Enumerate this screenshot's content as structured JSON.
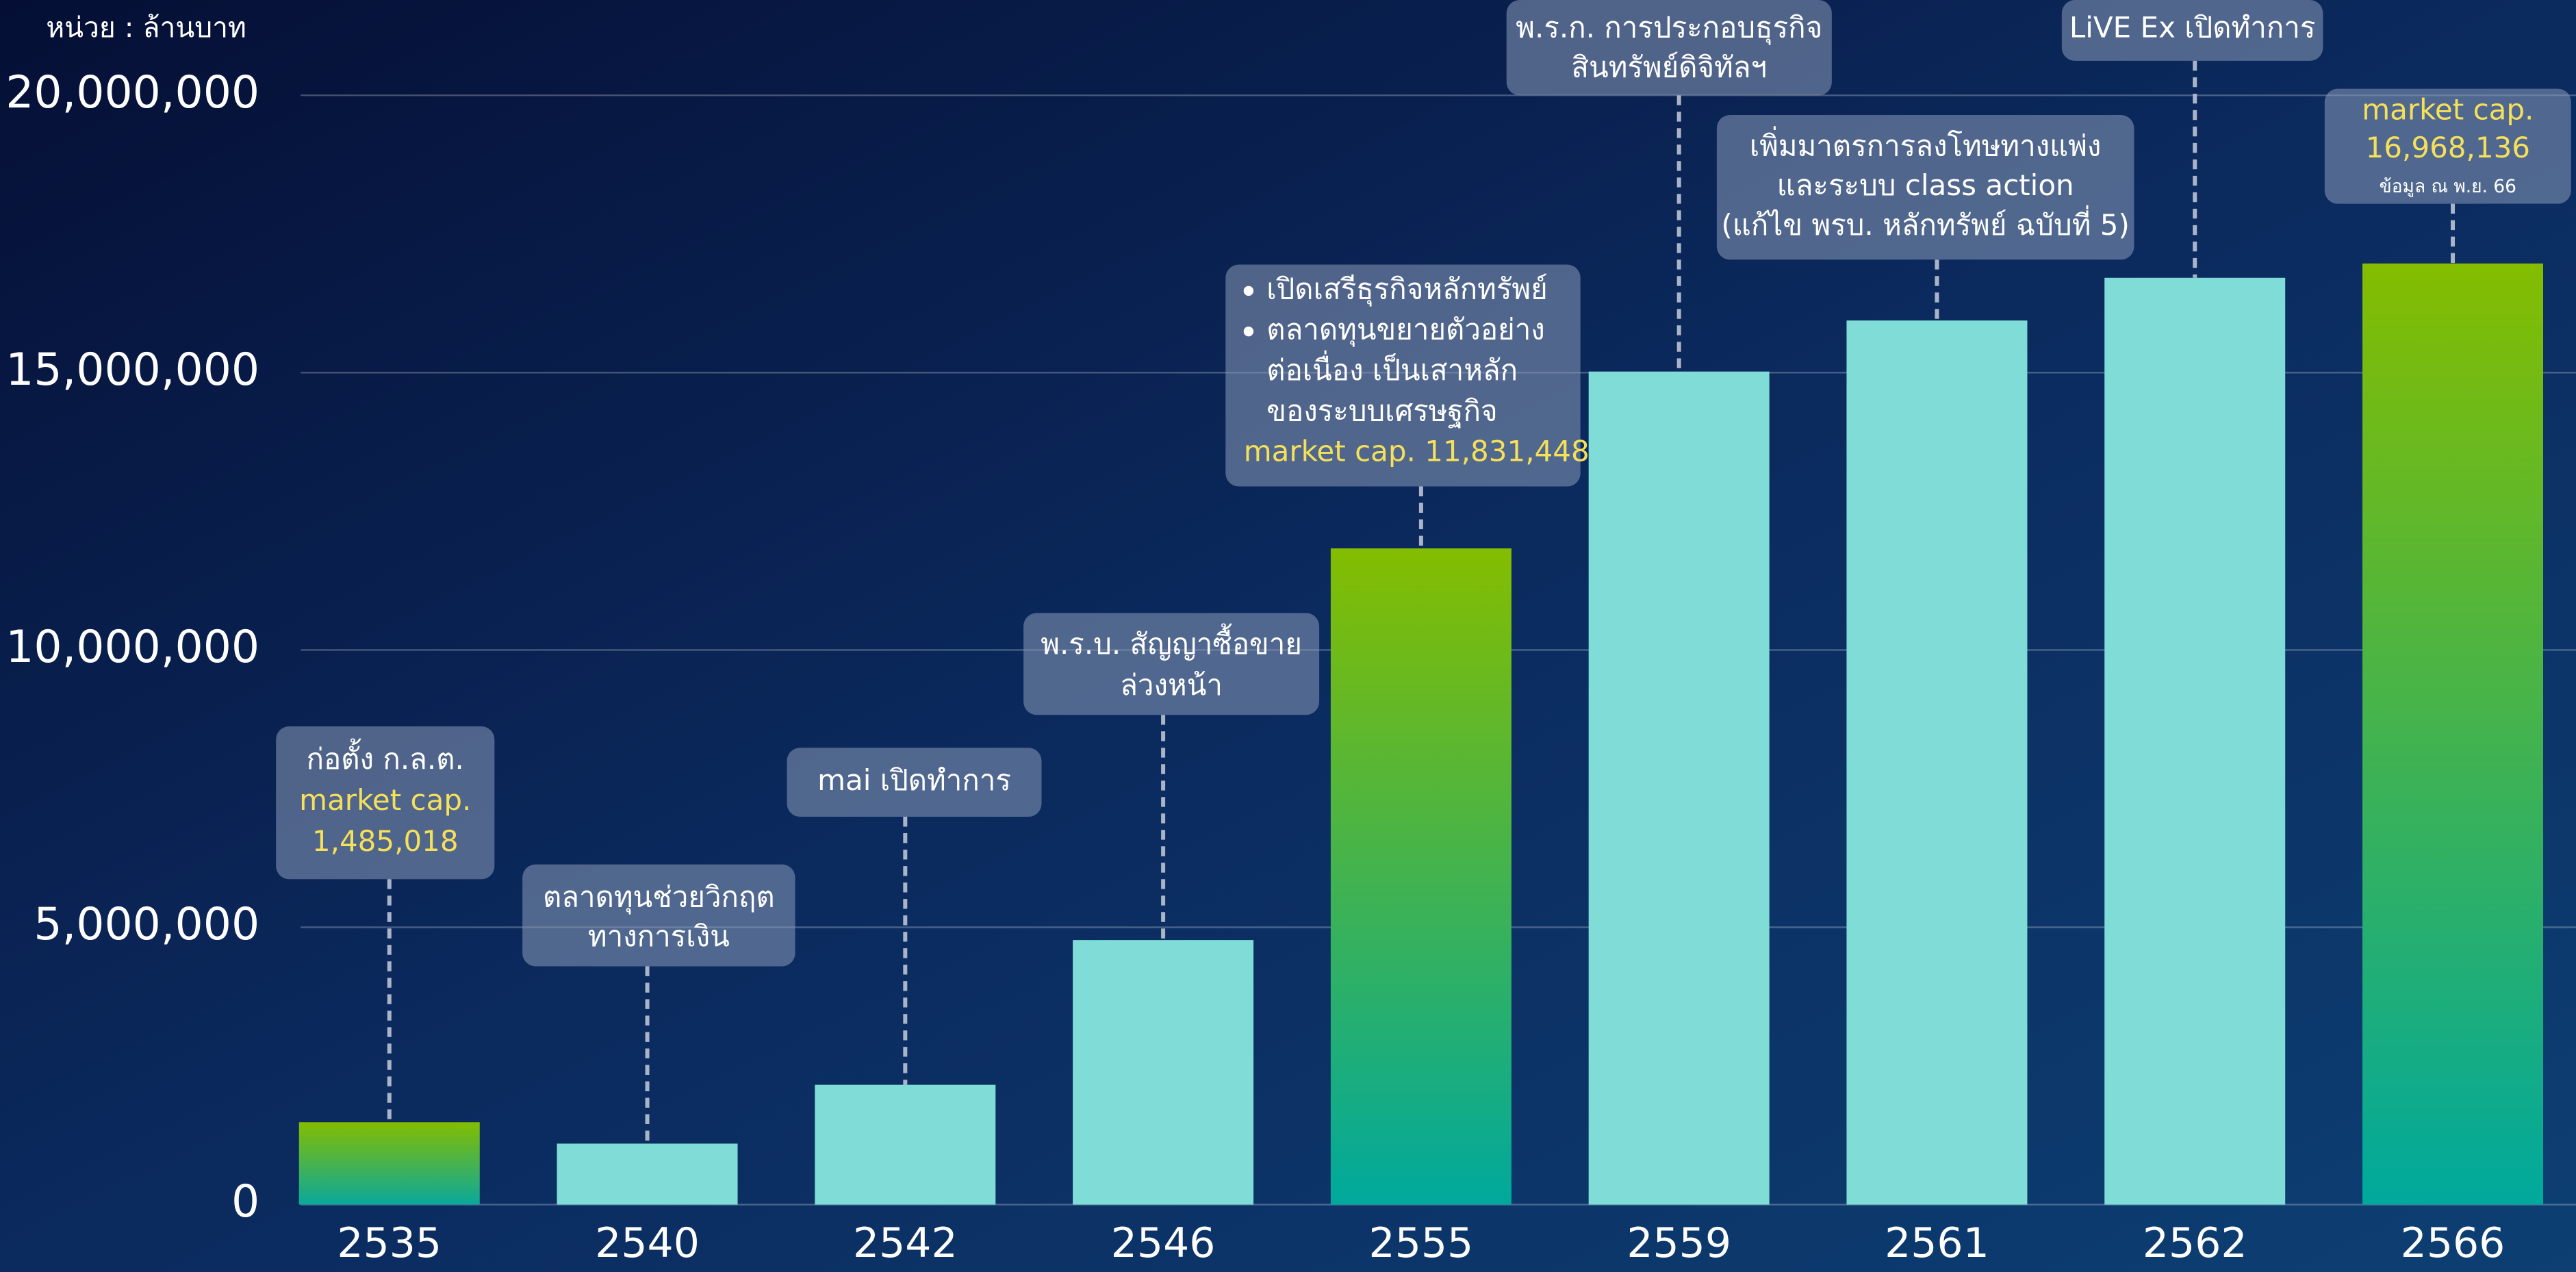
{
  "chart_data": {
    "type": "bar",
    "unit_label": "หน่วย : ล้านบาท",
    "categories": [
      "2535",
      "2540",
      "2542",
      "2546",
      "2555",
      "2559",
      "2561",
      "2562",
      "2566"
    ],
    "values": [
      1485018,
      1100000,
      2160000,
      4770000,
      11831448,
      15020000,
      15940000,
      16710000,
      16968136
    ],
    "colors": [
      [
        "#84bd00",
        "#0aa89c"
      ],
      [
        "#7fdcd6",
        "#7fdcd6"
      ],
      [
        "#7fdcd6",
        "#7fdcd6"
      ],
      [
        "#7fdcd6",
        "#7fdcd6"
      ],
      [
        "#84bd00",
        "#00a99d"
      ],
      [
        "#7fdcd6",
        "#7fdcd6"
      ],
      [
        "#7fdcd6",
        "#7fdcd6"
      ],
      [
        "#7fdcd6",
        "#7fdcd6"
      ],
      [
        "#84bd00",
        "#00a99d"
      ]
    ],
    "ylim": [
      0,
      20000000
    ],
    "yticks": [
      0,
      {
        "value": 5000000,
        "label": "5,000,000"
      },
      {
        "value": 10000000,
        "label": "10,000,000"
      },
      {
        "value": 15000000,
        "label": "15,000,000"
      },
      {
        "value": 20000000,
        "label": "20,000,000"
      }
    ],
    "grid": true,
    "annotations": [
      {
        "x": "2535",
        "lines": [
          {
            "text": "ก่อตั้ง ก.ล.ต.",
            "color": "#ffffff"
          },
          {
            "text": "market cap.",
            "color": "#f5e05a"
          },
          {
            "text": "1,485,018",
            "color": "#f5e05a"
          }
        ]
      },
      {
        "x": "2540",
        "lines": [
          {
            "text": "ตลาดทุนช่วยวิกฤต",
            "color": "#ffffff"
          },
          {
            "text": "ทางการเงิน",
            "color": "#ffffff"
          }
        ]
      },
      {
        "x": "2542",
        "lines": [
          {
            "text": "mai เปิดทำการ",
            "color": "#ffffff"
          }
        ]
      },
      {
        "x": "2546",
        "lines": [
          {
            "text": "พ.ร.บ. สัญญาซื้อขาย",
            "color": "#ffffff"
          },
          {
            "text": "ล่วงหน้า",
            "color": "#ffffff"
          }
        ]
      },
      {
        "x": "2555",
        "align": "left",
        "lines": [
          {
            "text": "เปิดเสรีธุรกิจหลักทรัพย์",
            "color": "#ffffff",
            "bullet": true
          },
          {
            "text": "ตลาดทุนขยายตัวอย่าง",
            "color": "#ffffff",
            "bullet": true
          },
          {
            "text": "ต่อเนื่อง เป็นเสาหลัก",
            "color": "#ffffff"
          },
          {
            "text": "ของระบบเศรษฐกิจ",
            "color": "#ffffff"
          },
          {
            "text": "market cap. 11,831,448",
            "color": "#f5e05a"
          }
        ]
      },
      {
        "x": "2559",
        "lines": [
          {
            "text": "พ.ร.ก. การประกอบธุรกิจ",
            "color": "#ffffff"
          },
          {
            "text": "สินทรัพย์ดิจิทัลฯ",
            "color": "#ffffff"
          }
        ]
      },
      {
        "x": "2561",
        "lines": [
          {
            "text": "เพิ่มมาตรการลงโทษทางแพ่ง",
            "color": "#ffffff"
          },
          {
            "text": "และระบบ class action",
            "color": "#ffffff"
          },
          {
            "text": "(แก้ไข พรบ. หลักทรัพย์ ฉบับที่ 5)",
            "color": "#ffffff"
          }
        ]
      },
      {
        "x": "2562",
        "lines": [
          {
            "text": "LiVE Ex เปิดทำการ",
            "color": "#ffffff"
          }
        ]
      },
      {
        "x": "2566",
        "lines": [
          {
            "text": "market cap.",
            "color": "#f5e05a"
          },
          {
            "text": "16,968,136",
            "color": "#f5e05a"
          },
          {
            "text": "ข้อมูล ณ พ.ย. 66",
            "color": "#ffffff",
            "small": true
          }
        ]
      }
    ]
  }
}
